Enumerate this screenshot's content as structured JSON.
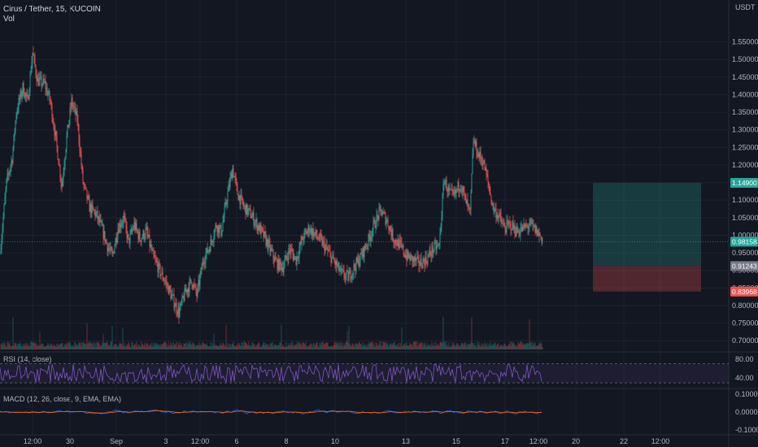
{
  "header": {
    "symbol": "Cirus / Tether",
    "interval": "15",
    "exchange": "KUCOIN",
    "vol_label": "Vol"
  },
  "currency": "USDT",
  "colors": {
    "up": "#26a69a",
    "down": "#ef5350",
    "rsi": "#7e57c2",
    "macd": "#2962ff",
    "signal": "#ff6d00",
    "bg": "#131722",
    "grid": "#1e222d"
  },
  "indicators": {
    "rsi_label": "RSI (14, close)",
    "macd_label": "MACD (12, 26, close, 9, EMA, EMA)"
  },
  "chart_data": {
    "type": "candlestick",
    "price_axis": {
      "ylim": [
        0.675,
        1.6
      ],
      "ticks": [
        "1.55000",
        "1.50000",
        "1.45000",
        "1.40000",
        "1.35000",
        "1.30000",
        "1.25000",
        "1.20000",
        "1.15000",
        "1.10000",
        "1.05000",
        "1.00000",
        "0.95000",
        "0.90000",
        "0.85000",
        "0.80000",
        "0.75000",
        "0.70000"
      ]
    },
    "time_axis": {
      "labels": [
        "12:00",
        "30",
        "Sep",
        "3",
        "12:00",
        "6",
        "8",
        "10",
        "13",
        "15",
        "17",
        "12:00",
        "20",
        "22",
        "12:00"
      ]
    },
    "price_path": [
      {
        "t": 0,
        "p": 0.95
      },
      {
        "t": 8,
        "p": 1.15
      },
      {
        "t": 15,
        "p": 1.22
      },
      {
        "t": 20,
        "p": 1.35
      },
      {
        "t": 28,
        "p": 1.42
      },
      {
        "t": 34,
        "p": 1.38
      },
      {
        "t": 40,
        "p": 1.52
      },
      {
        "t": 46,
        "p": 1.44
      },
      {
        "t": 55,
        "p": 1.43
      },
      {
        "t": 62,
        "p": 1.38
      },
      {
        "t": 70,
        "p": 1.25
      },
      {
        "t": 76,
        "p": 1.14
      },
      {
        "t": 82,
        "p": 1.28
      },
      {
        "t": 88,
        "p": 1.38
      },
      {
        "t": 95,
        "p": 1.33
      },
      {
        "t": 102,
        "p": 1.15
      },
      {
        "t": 110,
        "p": 1.08
      },
      {
        "t": 118,
        "p": 1.06
      },
      {
        "t": 125,
        "p": 1.02
      },
      {
        "t": 132,
        "p": 0.97
      },
      {
        "t": 138,
        "p": 0.94
      },
      {
        "t": 145,
        "p": 1.02
      },
      {
        "t": 152,
        "p": 1.05
      },
      {
        "t": 158,
        "p": 0.98
      },
      {
        "t": 165,
        "p": 1.03
      },
      {
        "t": 172,
        "p": 0.99
      },
      {
        "t": 180,
        "p": 1.01
      },
      {
        "t": 188,
        "p": 0.94
      },
      {
        "t": 196,
        "p": 0.9
      },
      {
        "t": 205,
        "p": 0.86
      },
      {
        "t": 212,
        "p": 0.82
      },
      {
        "t": 220,
        "p": 0.78
      },
      {
        "t": 228,
        "p": 0.84
      },
      {
        "t": 236,
        "p": 0.87
      },
      {
        "t": 242,
        "p": 0.83
      },
      {
        "t": 250,
        "p": 0.93
      },
      {
        "t": 258,
        "p": 0.97
      },
      {
        "t": 266,
        "p": 1.03
      },
      {
        "t": 272,
        "p": 1.01
      },
      {
        "t": 280,
        "p": 1.12
      },
      {
        "t": 286,
        "p": 1.19
      },
      {
        "t": 292,
        "p": 1.12
      },
      {
        "t": 300,
        "p": 1.08
      },
      {
        "t": 308,
        "p": 1.06
      },
      {
        "t": 316,
        "p": 1.03
      },
      {
        "t": 324,
        "p": 1.0
      },
      {
        "t": 332,
        "p": 0.96
      },
      {
        "t": 340,
        "p": 0.92
      },
      {
        "t": 348,
        "p": 0.91
      },
      {
        "t": 356,
        "p": 0.96
      },
      {
        "t": 364,
        "p": 0.93
      },
      {
        "t": 372,
        "p": 0.99
      },
      {
        "t": 380,
        "p": 1.02
      },
      {
        "t": 388,
        "p": 1.0
      },
      {
        "t": 396,
        "p": 0.98
      },
      {
        "t": 404,
        "p": 0.95
      },
      {
        "t": 412,
        "p": 0.92
      },
      {
        "t": 420,
        "p": 0.89
      },
      {
        "t": 428,
        "p": 0.88
      },
      {
        "t": 436,
        "p": 0.91
      },
      {
        "t": 444,
        "p": 0.94
      },
      {
        "t": 452,
        "p": 0.98
      },
      {
        "t": 460,
        "p": 1.03
      },
      {
        "t": 468,
        "p": 1.07
      },
      {
        "t": 476,
        "p": 1.04
      },
      {
        "t": 484,
        "p": 0.99
      },
      {
        "t": 492,
        "p": 0.97
      },
      {
        "t": 500,
        "p": 0.94
      },
      {
        "t": 508,
        "p": 0.93
      },
      {
        "t": 516,
        "p": 0.92
      },
      {
        "t": 524,
        "p": 0.93
      },
      {
        "t": 532,
        "p": 0.96
      },
      {
        "t": 540,
        "p": 0.97
      },
      {
        "t": 546,
        "p": 1.16
      },
      {
        "t": 552,
        "p": 1.12
      },
      {
        "t": 558,
        "p": 1.11
      },
      {
        "t": 566,
        "p": 1.15
      },
      {
        "t": 572,
        "p": 1.1
      },
      {
        "t": 578,
        "p": 1.06
      },
      {
        "t": 582,
        "p": 1.27
      },
      {
        "t": 588,
        "p": 1.23
      },
      {
        "t": 594,
        "p": 1.21
      },
      {
        "t": 600,
        "p": 1.15
      },
      {
        "t": 606,
        "p": 1.08
      },
      {
        "t": 614,
        "p": 1.05
      },
      {
        "t": 620,
        "p": 1.02
      },
      {
        "t": 628,
        "p": 1.03
      },
      {
        "t": 636,
        "p": 1.01
      },
      {
        "t": 644,
        "p": 1.02
      },
      {
        "t": 652,
        "p": 1.03
      },
      {
        "t": 660,
        "p": 1.01
      },
      {
        "t": 667,
        "p": 0.99
      }
    ],
    "rsi_levels": {
      "upper": 70,
      "lower": 30,
      "ticks": [
        "80.00",
        "40.00"
      ]
    },
    "macd_ticks": [
      "0.10000",
      "0.00000",
      "-0.10000"
    ],
    "position": {
      "target": "1.14900",
      "entry": "0.91243",
      "stop": "0.83968"
    },
    "last_price": "0.98158"
  }
}
